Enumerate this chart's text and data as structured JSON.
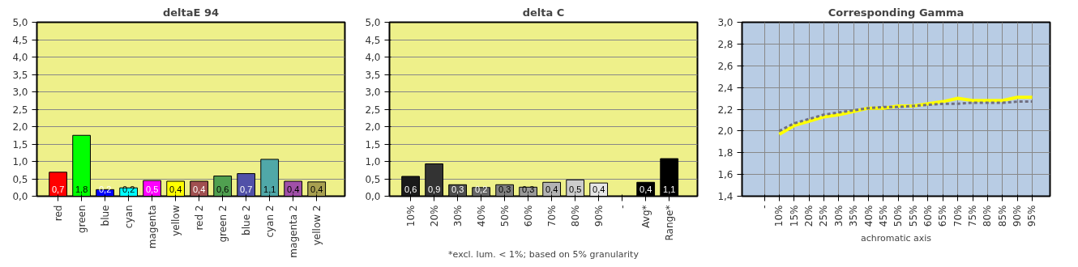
{
  "chart_data": [
    {
      "type": "bar",
      "title": "deltaE 94",
      "categories": [
        "red",
        "green",
        "blue",
        "cyan",
        "magenta",
        "yellow",
        "red 2",
        "green 2",
        "blue 2",
        "cyan 2",
        "magenta 2",
        "yellow 2"
      ],
      "values": [
        0.69,
        1.75,
        0.19,
        0.24,
        0.45,
        0.43,
        0.43,
        0.58,
        0.65,
        1.06,
        0.43,
        0.41
      ],
      "colors": [
        "#ff0000",
        "#00ff00",
        "#0000ff",
        "#00ffff",
        "#ff00ff",
        "#ffff00",
        "#a05050",
        "#50a050",
        "#5050a8",
        "#50a8a8",
        "#a050a8",
        "#a8a050"
      ],
      "value_labels": [
        "0,7",
        "1,8",
        "0,2",
        "0,2",
        "0,5",
        "0,4",
        "0,4",
        "0,6",
        "0,7",
        "1,1",
        "0,4",
        "0,4"
      ],
      "ylim": [
        0,
        5
      ],
      "yticks": [
        {
          "value": 0,
          "label": "0,0"
        },
        {
          "value": 0.5,
          "label": "0,5"
        },
        {
          "value": 1,
          "label": "1,0"
        },
        {
          "value": 1.5,
          "label": "1,5"
        },
        {
          "value": 2,
          "label": "2,0"
        },
        {
          "value": 2.5,
          "label": "2,5"
        },
        {
          "value": 3,
          "label": "3,0"
        },
        {
          "value": 3.5,
          "label": "3,5"
        },
        {
          "value": 4,
          "label": "4,0"
        },
        {
          "value": 4.5,
          "label": "4,5"
        },
        {
          "value": 5,
          "label": "5,0"
        }
      ],
      "grid": "y"
    },
    {
      "type": "bar",
      "title": "delta C",
      "categories": [
        "10%",
        "20%",
        "30%",
        "40%",
        "50%",
        "60%",
        "70%",
        "80%",
        "90%",
        "-",
        "Avg*",
        "Range*"
      ],
      "values": [
        0.57,
        0.93,
        0.33,
        0.25,
        0.33,
        0.26,
        0.4,
        0.47,
        0.38,
        null,
        0.4,
        1.08
      ],
      "colors": [
        "#1a1a1a",
        "#333333",
        "#4d4d4d",
        "#666666",
        "#808080",
        "#999999",
        "#b3b3b3",
        "#cccccc",
        "#e6e6e6",
        null,
        "#000000",
        "#000000"
      ],
      "value_labels": [
        "0,6",
        "0,9",
        "0,3",
        "0,2",
        "0,3",
        "0,3",
        "0,4",
        "0,5",
        "0,4",
        null,
        "0,4",
        "1,1"
      ],
      "annotations": [
        "*excl. lum. < 1%; based on 5% granularity"
      ],
      "ylim": [
        0,
        5
      ],
      "yticks": [
        {
          "value": 0,
          "label": "0,0"
        },
        {
          "value": 0.5,
          "label": "0,5"
        },
        {
          "value": 1,
          "label": "1,0"
        },
        {
          "value": 1.5,
          "label": "1,5"
        },
        {
          "value": 2,
          "label": "2,0"
        },
        {
          "value": 2.5,
          "label": "2,5"
        },
        {
          "value": 3,
          "label": "3,0"
        },
        {
          "value": 3.5,
          "label": "3,5"
        },
        {
          "value": 4,
          "label": "4,0"
        },
        {
          "value": 4.5,
          "label": "4,5"
        },
        {
          "value": 5,
          "label": "5,0"
        }
      ],
      "grid": "y"
    },
    {
      "type": "line",
      "title": "Corresponding Gamma",
      "xlabel": "achromatic axis",
      "categories": [
        "-",
        "10%",
        "15%",
        "20%",
        "25%",
        "30%",
        "35%",
        "40%",
        "45%",
        "50%",
        "55%",
        "60%",
        "65%",
        "70%",
        "75%",
        "80%",
        "85%",
        "90%",
        "95%"
      ],
      "series": [
        {
          "color": "#ffff00",
          "line_style": "solid",
          "values": [
            null,
            1.97,
            2.05,
            2.09,
            2.13,
            2.15,
            2.18,
            2.21,
            2.21,
            2.23,
            2.23,
            2.25,
            2.27,
            2.3,
            2.28,
            2.28,
            2.28,
            2.31,
            2.31
          ]
        },
        {
          "color": "#707080",
          "line_style": "dotted",
          "values": [
            null,
            2.0,
            2.07,
            2.11,
            2.15,
            2.17,
            2.19,
            2.21,
            2.22,
            2.22,
            2.23,
            2.24,
            2.25,
            2.25,
            2.26,
            2.26,
            2.26,
            2.27,
            2.27
          ]
        }
      ],
      "ylim": [
        1.4,
        3.0
      ],
      "yticks": [
        {
          "value": 1.4,
          "label": "1,4"
        },
        {
          "value": 1.6,
          "label": "1,6"
        },
        {
          "value": 1.8,
          "label": "1,8"
        },
        {
          "value": 2.0,
          "label": "2,0"
        },
        {
          "value": 2.2,
          "label": "2,2"
        },
        {
          "value": 2.4,
          "label": "2,4"
        },
        {
          "value": 2.6,
          "label": "2,6"
        },
        {
          "value": 2.8,
          "label": "2,8"
        },
        {
          "value": 3.0,
          "label": "3,0"
        }
      ],
      "grid": true
    }
  ]
}
